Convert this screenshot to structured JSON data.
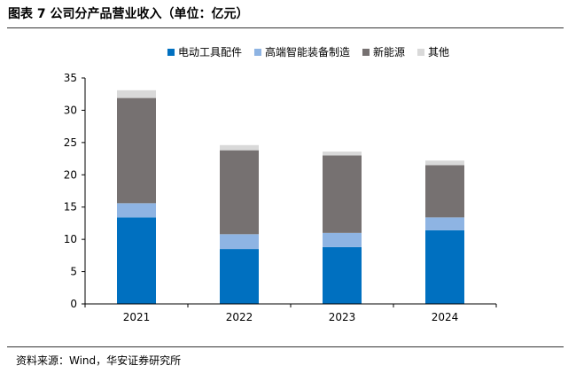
{
  "figure": {
    "title": "图表 7 公司分产品营业收入（单位：亿元）",
    "source": "资料来源：Wind，华安证券研究所"
  },
  "chart_data": {
    "type": "bar",
    "stacked": true,
    "title": "",
    "xlabel": "",
    "ylabel": "",
    "categories": [
      "2021",
      "2022",
      "2023",
      "2024"
    ],
    "ylim": [
      0,
      35
    ],
    "yticks": [
      0,
      5,
      10,
      15,
      20,
      25,
      30,
      35
    ],
    "grid": false,
    "legend": "top-center",
    "series": [
      {
        "name": "电动工具配件",
        "values": [
          13.4,
          8.5,
          8.8,
          11.4
        ],
        "color": "#0070C0"
      },
      {
        "name": "高端智能装备制造",
        "values": [
          2.2,
          2.3,
          2.2,
          2.0
        ],
        "color": "#8EB4E3"
      },
      {
        "name": "新能源",
        "values": [
          16.3,
          13.0,
          12.0,
          8.1
        ],
        "color": "#767171"
      },
      {
        "name": "其他",
        "values": [
          1.2,
          0.8,
          0.6,
          0.7
        ],
        "color": "#D9D9D9"
      }
    ]
  }
}
